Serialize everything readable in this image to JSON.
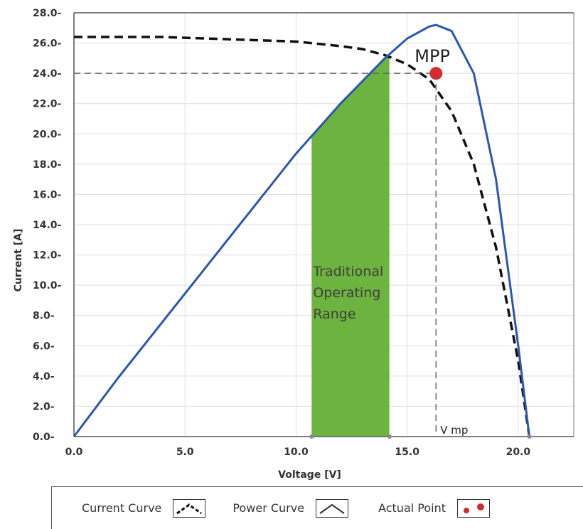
{
  "chart_data": {
    "type": "line",
    "xlabel": "Voltage [V]",
    "ylabel": "Current [A]",
    "xlim": [
      0,
      22.5
    ],
    "ylim": [
      0,
      28
    ],
    "x_ticks": [
      "0.0",
      "5.0",
      "10.0",
      "15.0",
      "20.0"
    ],
    "x_tick_values": [
      0,
      5,
      10,
      15,
      20
    ],
    "y_ticks": [
      "0.0",
      "2.0",
      "4.0",
      "6.0",
      "8.0",
      "10.0",
      "12.0",
      "14.0",
      "16.0",
      "18.0",
      "20.0",
      "22.0",
      "24.0",
      "26.0",
      "28.0"
    ],
    "y_tick_values": [
      0,
      2,
      4,
      6,
      8,
      10,
      12,
      14,
      16,
      18,
      20,
      22,
      24,
      26,
      28
    ],
    "grid": true,
    "series": [
      {
        "name": "Current Curve",
        "style": "dashed",
        "color": "#111111",
        "x": [
          0,
          2,
          4,
          6,
          8,
          10,
          12,
          13,
          14,
          15,
          16,
          17,
          18,
          19,
          20,
          20.5
        ],
        "y": [
          26.4,
          26.4,
          26.4,
          26.3,
          26.2,
          26.1,
          25.8,
          25.6,
          25.2,
          24.6,
          23.6,
          21.5,
          18.0,
          12.5,
          5.0,
          0
        ]
      },
      {
        "name": "Power Curve",
        "style": "solid",
        "color": "#2a56b3",
        "x": [
          0,
          2,
          4,
          6,
          8,
          10,
          12,
          14,
          15,
          16,
          16.3,
          17,
          18,
          19,
          20,
          20.5
        ],
        "y": [
          0,
          3.9,
          7.6,
          11.3,
          15.0,
          18.7,
          22.0,
          25.0,
          26.3,
          27.1,
          27.2,
          26.8,
          24.0,
          17.0,
          6.0,
          0
        ]
      }
    ],
    "points": [
      {
        "name": "Actual Point",
        "label": "MPP",
        "x": 16.3,
        "y": 24.0,
        "color": "#d42b2b"
      }
    ],
    "annotations": {
      "operating_range": {
        "x0": 10.7,
        "x1": 14.2,
        "label_lines": [
          "Traditional",
          "Operating",
          "Range"
        ],
        "color": "#6db33f"
      },
      "vmp": {
        "x": 16.3,
        "label": "V mp"
      },
      "mpp_label": "MPP"
    },
    "legend": {
      "placement": "bottom",
      "items": [
        {
          "label": "Current Curve",
          "icon": "dashed-peak-icon"
        },
        {
          "label": "Power Curve",
          "icon": "solid-peak-icon"
        },
        {
          "label": "Actual Point",
          "icon": "red-dots-icon"
        }
      ]
    }
  }
}
